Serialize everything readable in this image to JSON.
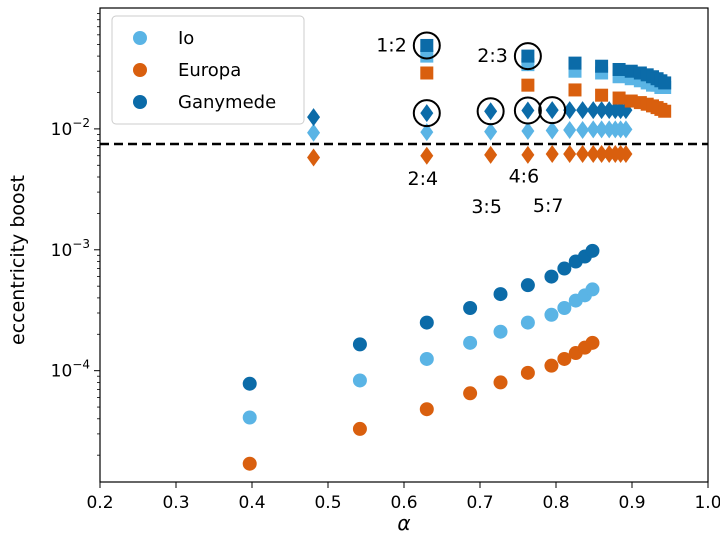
{
  "chart_data": {
    "type": "scatter",
    "xlabel": "α",
    "ylabel": "eccentricity boost",
    "xscale": "linear",
    "yscale": "log",
    "xlim": [
      0.2,
      1.0
    ],
    "ylim": [
      1.2e-05,
      0.1
    ],
    "x_ticks": [
      0.2,
      0.3,
      0.4,
      0.5,
      0.6,
      0.7,
      0.8,
      0.9,
      1.0
    ],
    "x_tick_labels": [
      "0.2",
      "0.3",
      "0.4",
      "0.5",
      "0.6",
      "0.7",
      "0.8",
      "0.9",
      "1.0"
    ],
    "y_ticks": [
      {
        "value": 0.0001,
        "base": "10",
        "exp": "−4"
      },
      {
        "value": 0.001,
        "base": "10",
        "exp": "−3"
      },
      {
        "value": 0.01,
        "base": "10",
        "exp": "−2"
      }
    ],
    "threshold": {
      "value": 0.0075,
      "style": "dashed",
      "color": "#000000"
    },
    "legend": {
      "location": "top-left",
      "entries": [
        {
          "name": "Io",
          "color": "#5ab4e5"
        },
        {
          "name": "Europa",
          "color": "#d95f0e"
        },
        {
          "name": "Ganymede",
          "color": "#0b6ba8"
        }
      ]
    },
    "series": [
      {
        "name": "Io",
        "marker": "circle",
        "color": "#5ab4e5",
        "x": [
          0.397,
          0.542,
          0.63,
          0.687,
          0.727,
          0.763,
          0.794,
          0.811,
          0.826,
          0.838,
          0.848
        ],
        "y": [
          4.1e-05,
          8.3e-05,
          0.000125,
          0.00017,
          0.00021,
          0.00025,
          0.00029,
          0.00033,
          0.00038,
          0.00042,
          0.00047
        ]
      },
      {
        "name": "Europa",
        "marker": "circle",
        "color": "#d95f0e",
        "x": [
          0.397,
          0.542,
          0.63,
          0.687,
          0.727,
          0.763,
          0.794,
          0.811,
          0.826,
          0.838,
          0.848
        ],
        "y": [
          1.7e-05,
          3.3e-05,
          4.8e-05,
          6.5e-05,
          8e-05,
          9.6e-05,
          0.00011,
          0.000125,
          0.00014,
          0.000155,
          0.00017
        ]
      },
      {
        "name": "Ganymede",
        "marker": "circle",
        "color": "#0b6ba8",
        "x": [
          0.397,
          0.542,
          0.63,
          0.687,
          0.727,
          0.763,
          0.794,
          0.811,
          0.826,
          0.838,
          0.848
        ],
        "y": [
          7.8e-05,
          0.000165,
          0.00025,
          0.00033,
          0.00043,
          0.00051,
          0.0006,
          0.0007,
          0.0008,
          0.00088,
          0.00098
        ]
      },
      {
        "name": "Io",
        "marker": "diamond",
        "color": "#5ab4e5",
        "x": [
          0.481,
          0.63,
          0.714,
          0.763,
          0.795,
          0.818,
          0.835,
          0.849,
          0.86,
          0.87,
          0.878,
          0.885,
          0.892
        ],
        "y": [
          0.0093,
          0.0094,
          0.0095,
          0.0096,
          0.0097,
          0.0098,
          0.0098,
          0.0099,
          0.0099,
          0.0099,
          0.0099,
          0.0099,
          0.0099
        ]
      },
      {
        "name": "Europa",
        "marker": "diamond",
        "color": "#d95f0e",
        "x": [
          0.481,
          0.63,
          0.714,
          0.763,
          0.795,
          0.818,
          0.835,
          0.849,
          0.86,
          0.87,
          0.878,
          0.885,
          0.892
        ],
        "y": [
          0.0058,
          0.006,
          0.0061,
          0.0061,
          0.0062,
          0.0062,
          0.0062,
          0.0062,
          0.0062,
          0.0062,
          0.0062,
          0.0062,
          0.0062
        ]
      },
      {
        "name": "Ganymede",
        "marker": "diamond",
        "color": "#0b6ba8",
        "x": [
          0.481,
          0.63,
          0.714,
          0.763,
          0.795,
          0.818,
          0.835,
          0.849,
          0.86,
          0.87,
          0.878,
          0.885,
          0.892
        ],
        "y": [
          0.0125,
          0.0135,
          0.014,
          0.0142,
          0.0143,
          0.0143,
          0.0143,
          0.0143,
          0.0143,
          0.0143,
          0.0143,
          0.0143,
          0.0143
        ]
      },
      {
        "name": "Io",
        "marker": "square",
        "color": "#5ab4e5",
        "x": [
          0.63,
          0.763,
          0.825,
          0.86,
          0.883,
          0.899,
          0.911,
          0.92,
          0.927,
          0.933,
          0.938,
          0.943
        ],
        "y": [
          0.04,
          0.034,
          0.03,
          0.029,
          0.027,
          0.026,
          0.025,
          0.024,
          0.023,
          0.023,
          0.022,
          0.022
        ]
      },
      {
        "name": "Europa",
        "marker": "square",
        "color": "#d95f0e",
        "x": [
          0.63,
          0.763,
          0.825,
          0.86,
          0.883,
          0.899,
          0.911,
          0.92,
          0.927,
          0.933,
          0.938,
          0.943
        ],
        "y": [
          0.029,
          0.023,
          0.021,
          0.019,
          0.018,
          0.017,
          0.0165,
          0.016,
          0.0155,
          0.015,
          0.0145,
          0.014
        ]
      },
      {
        "name": "Ganymede",
        "marker": "square",
        "color": "#0b6ba8",
        "x": [
          0.63,
          0.763,
          0.825,
          0.86,
          0.883,
          0.899,
          0.911,
          0.92,
          0.927,
          0.933,
          0.938,
          0.943
        ],
        "y": [
          0.049,
          0.04,
          0.035,
          0.033,
          0.031,
          0.03,
          0.029,
          0.028,
          0.027,
          0.026,
          0.025,
          0.024
        ]
      }
    ],
    "annotations": [
      {
        "label": "1:2",
        "x": 0.63,
        "y": 0.049,
        "label_side": "left"
      },
      {
        "label": "2:3",
        "x": 0.763,
        "y": 0.04,
        "label_side": "left"
      },
      {
        "label": "2:4",
        "x": 0.63,
        "y": 0.0135,
        "label_side": "below"
      },
      {
        "label": "3:5",
        "x": 0.714,
        "y": 0.014,
        "label_side": "below-far"
      },
      {
        "label": "4:6",
        "x": 0.763,
        "y": 0.0142,
        "label_side": "below"
      },
      {
        "label": "5:7",
        "x": 0.795,
        "y": 0.0143,
        "label_side": "below-far"
      }
    ]
  }
}
